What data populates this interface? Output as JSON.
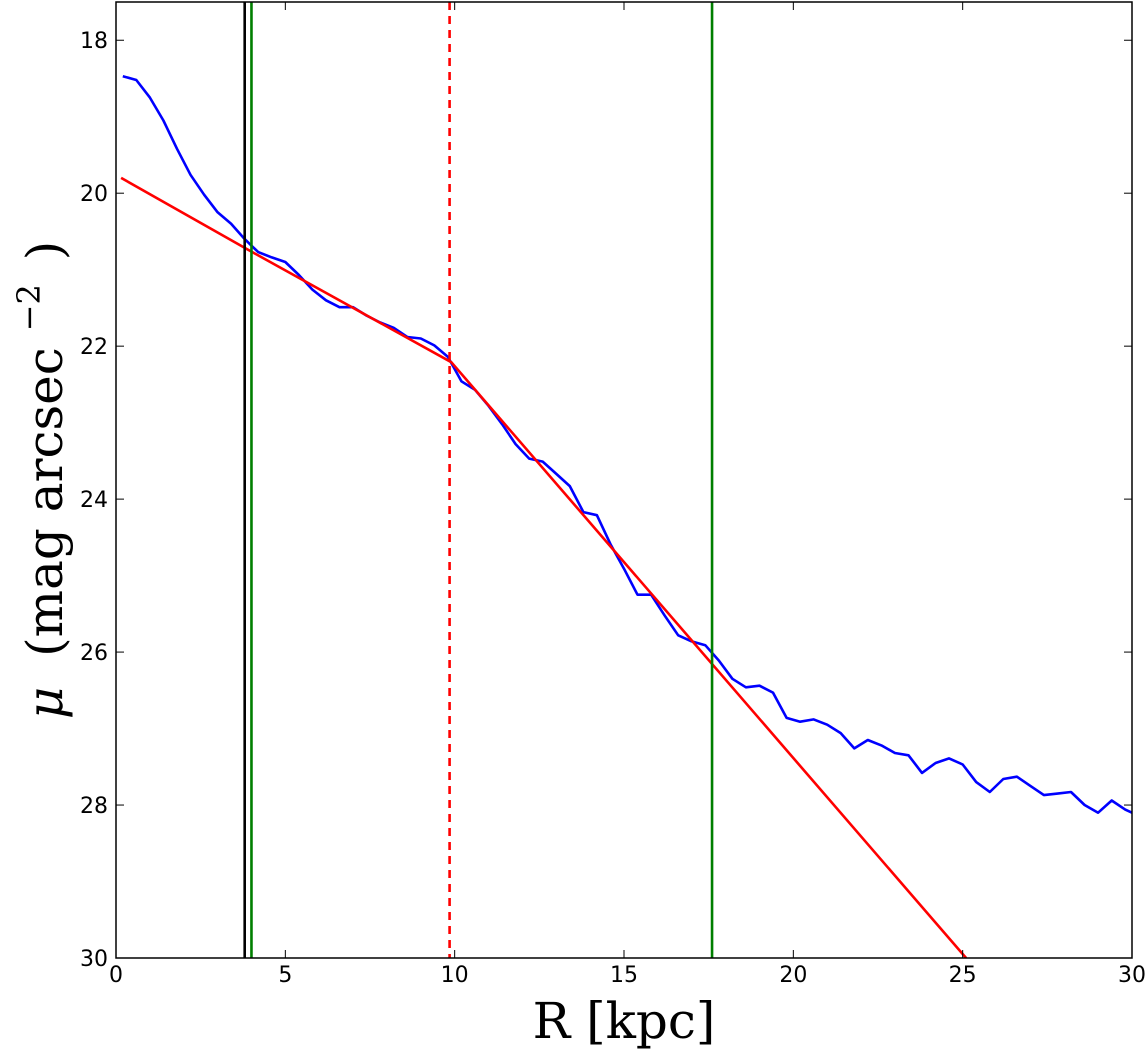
{
  "chart_data": {
    "type": "line",
    "xlabel": "R [kpc]",
    "ylabel": "μ (mag arcsec⁻²)",
    "ylabel_parts": {
      "symbol": "μ",
      "text": "(mag arcsec",
      "exponent": "−2",
      "close": ")"
    },
    "xlim": [
      0,
      30
    ],
    "ylim": [
      30,
      17.5
    ],
    "y_inverted": true,
    "grid": false,
    "xticks": [
      0,
      5,
      10,
      15,
      20,
      25,
      30
    ],
    "yticks": [
      18,
      20,
      22,
      24,
      26,
      28,
      30
    ],
    "series": [
      {
        "color": "#0000ff",
        "x": [
          0.2,
          0.6,
          1.0,
          1.4,
          1.8,
          2.2,
          2.6,
          3.0,
          3.4,
          3.8,
          4.2,
          4.6,
          5.0,
          5.4,
          5.8,
          6.2,
          6.6,
          7.0,
          7.4,
          7.8,
          8.2,
          8.6,
          9.0,
          9.4,
          9.8,
          10.2,
          10.6,
          11.0,
          11.4,
          11.8,
          12.2,
          12.6,
          13.0,
          13.4,
          13.8,
          14.2,
          14.6,
          15.0,
          15.4,
          15.8,
          16.2,
          16.6,
          17.0,
          17.4,
          17.8,
          18.2,
          18.6,
          19.0,
          19.4,
          19.8,
          20.2,
          20.6,
          21.0,
          21.4,
          21.8,
          22.2,
          22.6,
          23.0,
          23.4,
          23.8,
          24.2,
          24.6,
          25.0,
          25.4,
          25.8,
          26.2,
          26.6,
          27.0,
          27.4,
          27.8,
          28.2,
          28.6,
          29.0,
          29.4,
          29.8,
          30.0
        ],
        "y": [
          18.47,
          18.52,
          18.75,
          19.05,
          19.42,
          19.76,
          20.02,
          20.25,
          20.4,
          20.6,
          20.77,
          20.84,
          20.9,
          21.07,
          21.26,
          21.4,
          21.49,
          21.49,
          21.6,
          21.69,
          21.76,
          21.88,
          21.9,
          21.99,
          22.14,
          22.46,
          22.57,
          22.78,
          23.02,
          23.28,
          23.47,
          23.51,
          23.67,
          23.83,
          24.17,
          24.21,
          24.59,
          24.91,
          25.25,
          25.25,
          25.52,
          25.78,
          25.86,
          25.91,
          26.11,
          26.35,
          26.46,
          26.44,
          26.53,
          26.86,
          26.91,
          26.88,
          26.95,
          27.06,
          27.26,
          27.15,
          27.22,
          27.32,
          27.35,
          27.58,
          27.45,
          27.39,
          27.47,
          27.7,
          27.83,
          27.66,
          27.63,
          27.75,
          27.87,
          27.85,
          27.83,
          28.0,
          28.1,
          27.94,
          28.06,
          28.1
        ]
      },
      {
        "color": "#ff0000",
        "x": [
          0.15,
          3.9,
          9.9,
          25.1
        ],
        "y": [
          19.8,
          20.74,
          22.21,
          30.0
        ]
      }
    ],
    "vlines": [
      {
        "x": 3.8,
        "color": "#000000",
        "style": "solid"
      },
      {
        "x": 4.0,
        "color": "#007f00",
        "style": "solid"
      },
      {
        "x": 9.85,
        "color": "#ff0000",
        "style": "dashed"
      },
      {
        "x": 17.6,
        "color": "#007f00",
        "style": "solid"
      }
    ]
  }
}
